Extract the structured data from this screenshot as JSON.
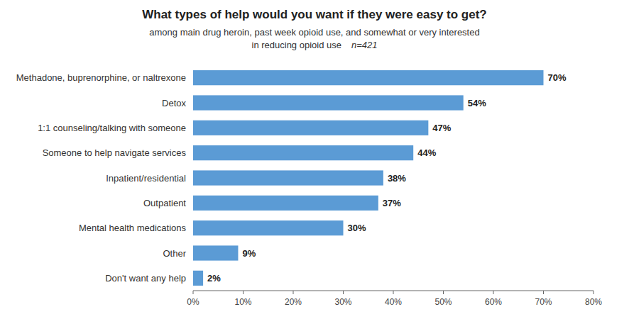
{
  "chart_data": {
    "type": "bar",
    "orientation": "horizontal",
    "title": "What types of help would you want if they were easy to get?",
    "subtitle": [
      "among main drug heroin, past week opioid use, and somewhat or very interested",
      "in reducing opioid use"
    ],
    "annotation": "n=421",
    "categories": [
      "Methadone, buprenorphine, or naltrexone",
      "Detox",
      "1:1 counseling/talking with someone",
      "Someone to help navigate services",
      "Inpatient/residential",
      "Outpatient",
      "Mental health medications",
      "Other",
      "Don't want any help"
    ],
    "values": [
      70,
      54,
      47,
      44,
      38,
      37,
      30,
      9,
      2
    ],
    "value_labels": [
      "70%",
      "54%",
      "47%",
      "44%",
      "38%",
      "37%",
      "30%",
      "9%",
      "2%"
    ],
    "data_labels": true,
    "color": "#5B9BD5",
    "xlim": [
      0,
      80
    ],
    "xticks": [
      {
        "value": 0,
        "label": "0%"
      },
      {
        "value": 10,
        "label": "10%"
      },
      {
        "value": 20,
        "label": "20%"
      },
      {
        "value": 30,
        "label": "30%"
      },
      {
        "value": 40,
        "label": "40%"
      },
      {
        "value": 50,
        "label": "50%"
      },
      {
        "value": 60,
        "label": "60%"
      },
      {
        "value": 70,
        "label": "70%"
      },
      {
        "value": 80,
        "label": "80%"
      }
    ],
    "grid": false
  }
}
